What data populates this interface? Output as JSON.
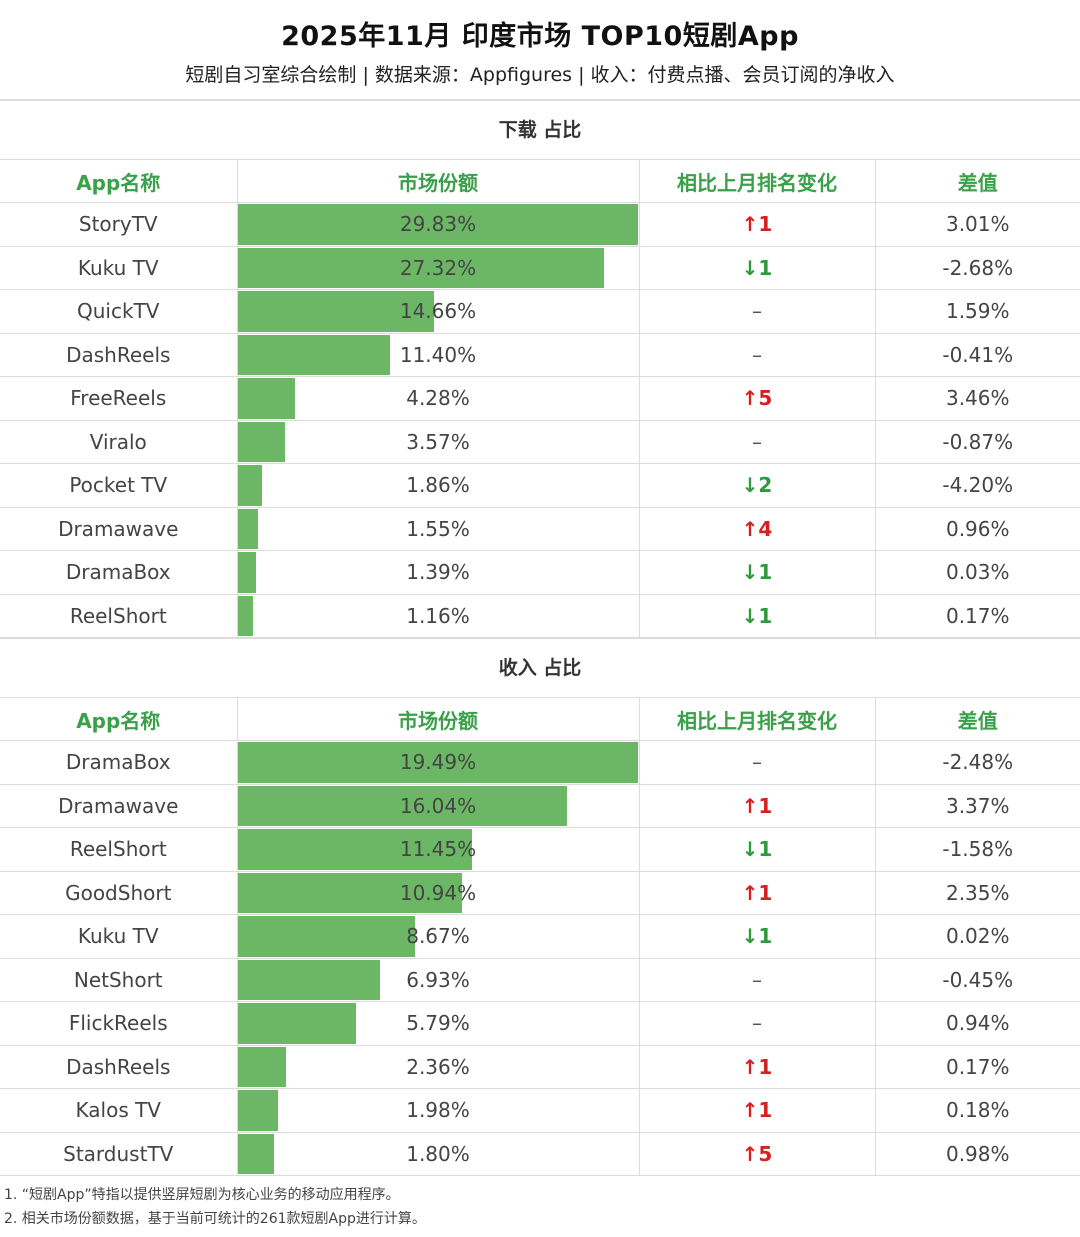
{
  "title": "2025年11月 印度市场 TOP10短剧App",
  "subtitle": "短剧自习室综合绘制 | 数据来源：Appfigures | 收入：付费点播、会员订阅的净收入",
  "colors": {
    "bar": "#6cb766",
    "header_text": "#3aa04a",
    "up": "#d42020",
    "down": "#2e9a3e"
  },
  "columns": [
    "App名称",
    "市场份额",
    "相比上月排名变化",
    "差值"
  ],
  "downloads": {
    "section_title": "下载 占比",
    "max_share": 29.83,
    "rows": [
      {
        "app": "StoryTV",
        "share": "29.83%",
        "share_value": 29.83,
        "change": "↑1",
        "dir": "up",
        "diff": "3.01%"
      },
      {
        "app": "Kuku TV",
        "share": "27.32%",
        "share_value": 27.32,
        "change": "↓1",
        "dir": "down",
        "diff": "-2.68%"
      },
      {
        "app": "QuickTV",
        "share": "14.66%",
        "share_value": 14.66,
        "change": "–",
        "dir": "flat",
        "diff": "1.59%"
      },
      {
        "app": "DashReels",
        "share": "11.40%",
        "share_value": 11.4,
        "change": "–",
        "dir": "flat",
        "diff": "-0.41%"
      },
      {
        "app": "FreeReels",
        "share": "4.28%",
        "share_value": 4.28,
        "change": "↑5",
        "dir": "up",
        "diff": "3.46%"
      },
      {
        "app": "Viralo",
        "share": "3.57%",
        "share_value": 3.57,
        "change": "–",
        "dir": "flat",
        "diff": "-0.87%"
      },
      {
        "app": "Pocket TV",
        "share": "1.86%",
        "share_value": 1.86,
        "change": "↓2",
        "dir": "down",
        "diff": "-4.20%"
      },
      {
        "app": "Dramawave",
        "share": "1.55%",
        "share_value": 1.55,
        "change": "↑4",
        "dir": "up",
        "diff": "0.96%"
      },
      {
        "app": "DramaBox",
        "share": "1.39%",
        "share_value": 1.39,
        "change": "↓1",
        "dir": "down",
        "diff": "0.03%"
      },
      {
        "app": "ReelShort",
        "share": "1.16%",
        "share_value": 1.16,
        "change": "↓1",
        "dir": "down",
        "diff": "0.17%"
      }
    ]
  },
  "revenue": {
    "section_title": "收入 占比",
    "max_share": 19.49,
    "rows": [
      {
        "app": "DramaBox",
        "share": "19.49%",
        "share_value": 19.49,
        "change": "–",
        "dir": "flat",
        "diff": "-2.48%"
      },
      {
        "app": "Dramawave",
        "share": "16.04%",
        "share_value": 16.04,
        "change": "↑1",
        "dir": "up",
        "diff": "3.37%"
      },
      {
        "app": "ReelShort",
        "share": "11.45%",
        "share_value": 11.45,
        "change": "↓1",
        "dir": "down",
        "diff": "-1.58%"
      },
      {
        "app": "GoodShort",
        "share": "10.94%",
        "share_value": 10.94,
        "change": "↑1",
        "dir": "up",
        "diff": "2.35%"
      },
      {
        "app": "Kuku TV",
        "share": "8.67%",
        "share_value": 8.67,
        "change": "↓1",
        "dir": "down",
        "diff": "0.02%"
      },
      {
        "app": "NetShort",
        "share": "6.93%",
        "share_value": 6.93,
        "change": "–",
        "dir": "flat",
        "diff": "-0.45%"
      },
      {
        "app": "FlickReels",
        "share": "5.79%",
        "share_value": 5.79,
        "change": "–",
        "dir": "flat",
        "diff": "0.94%"
      },
      {
        "app": "DashReels",
        "share": "2.36%",
        "share_value": 2.36,
        "change": "↑1",
        "dir": "up",
        "diff": "0.17%"
      },
      {
        "app": "Kalos TV",
        "share": "1.98%",
        "share_value": 1.98,
        "change": "↑1",
        "dir": "up",
        "diff": "0.18%"
      },
      {
        "app": "StardustTV",
        "share": "1.80%",
        "share_value": 1.8,
        "change": "↑5",
        "dir": "up",
        "diff": "0.98%"
      }
    ]
  },
  "notes": [
    "1. “短剧App”特指以提供竖屏短剧为核心业务的移动应用程序。",
    "2. 相关市场份额数据，基于当前可统计的261款短剧App进行计算。"
  ]
}
